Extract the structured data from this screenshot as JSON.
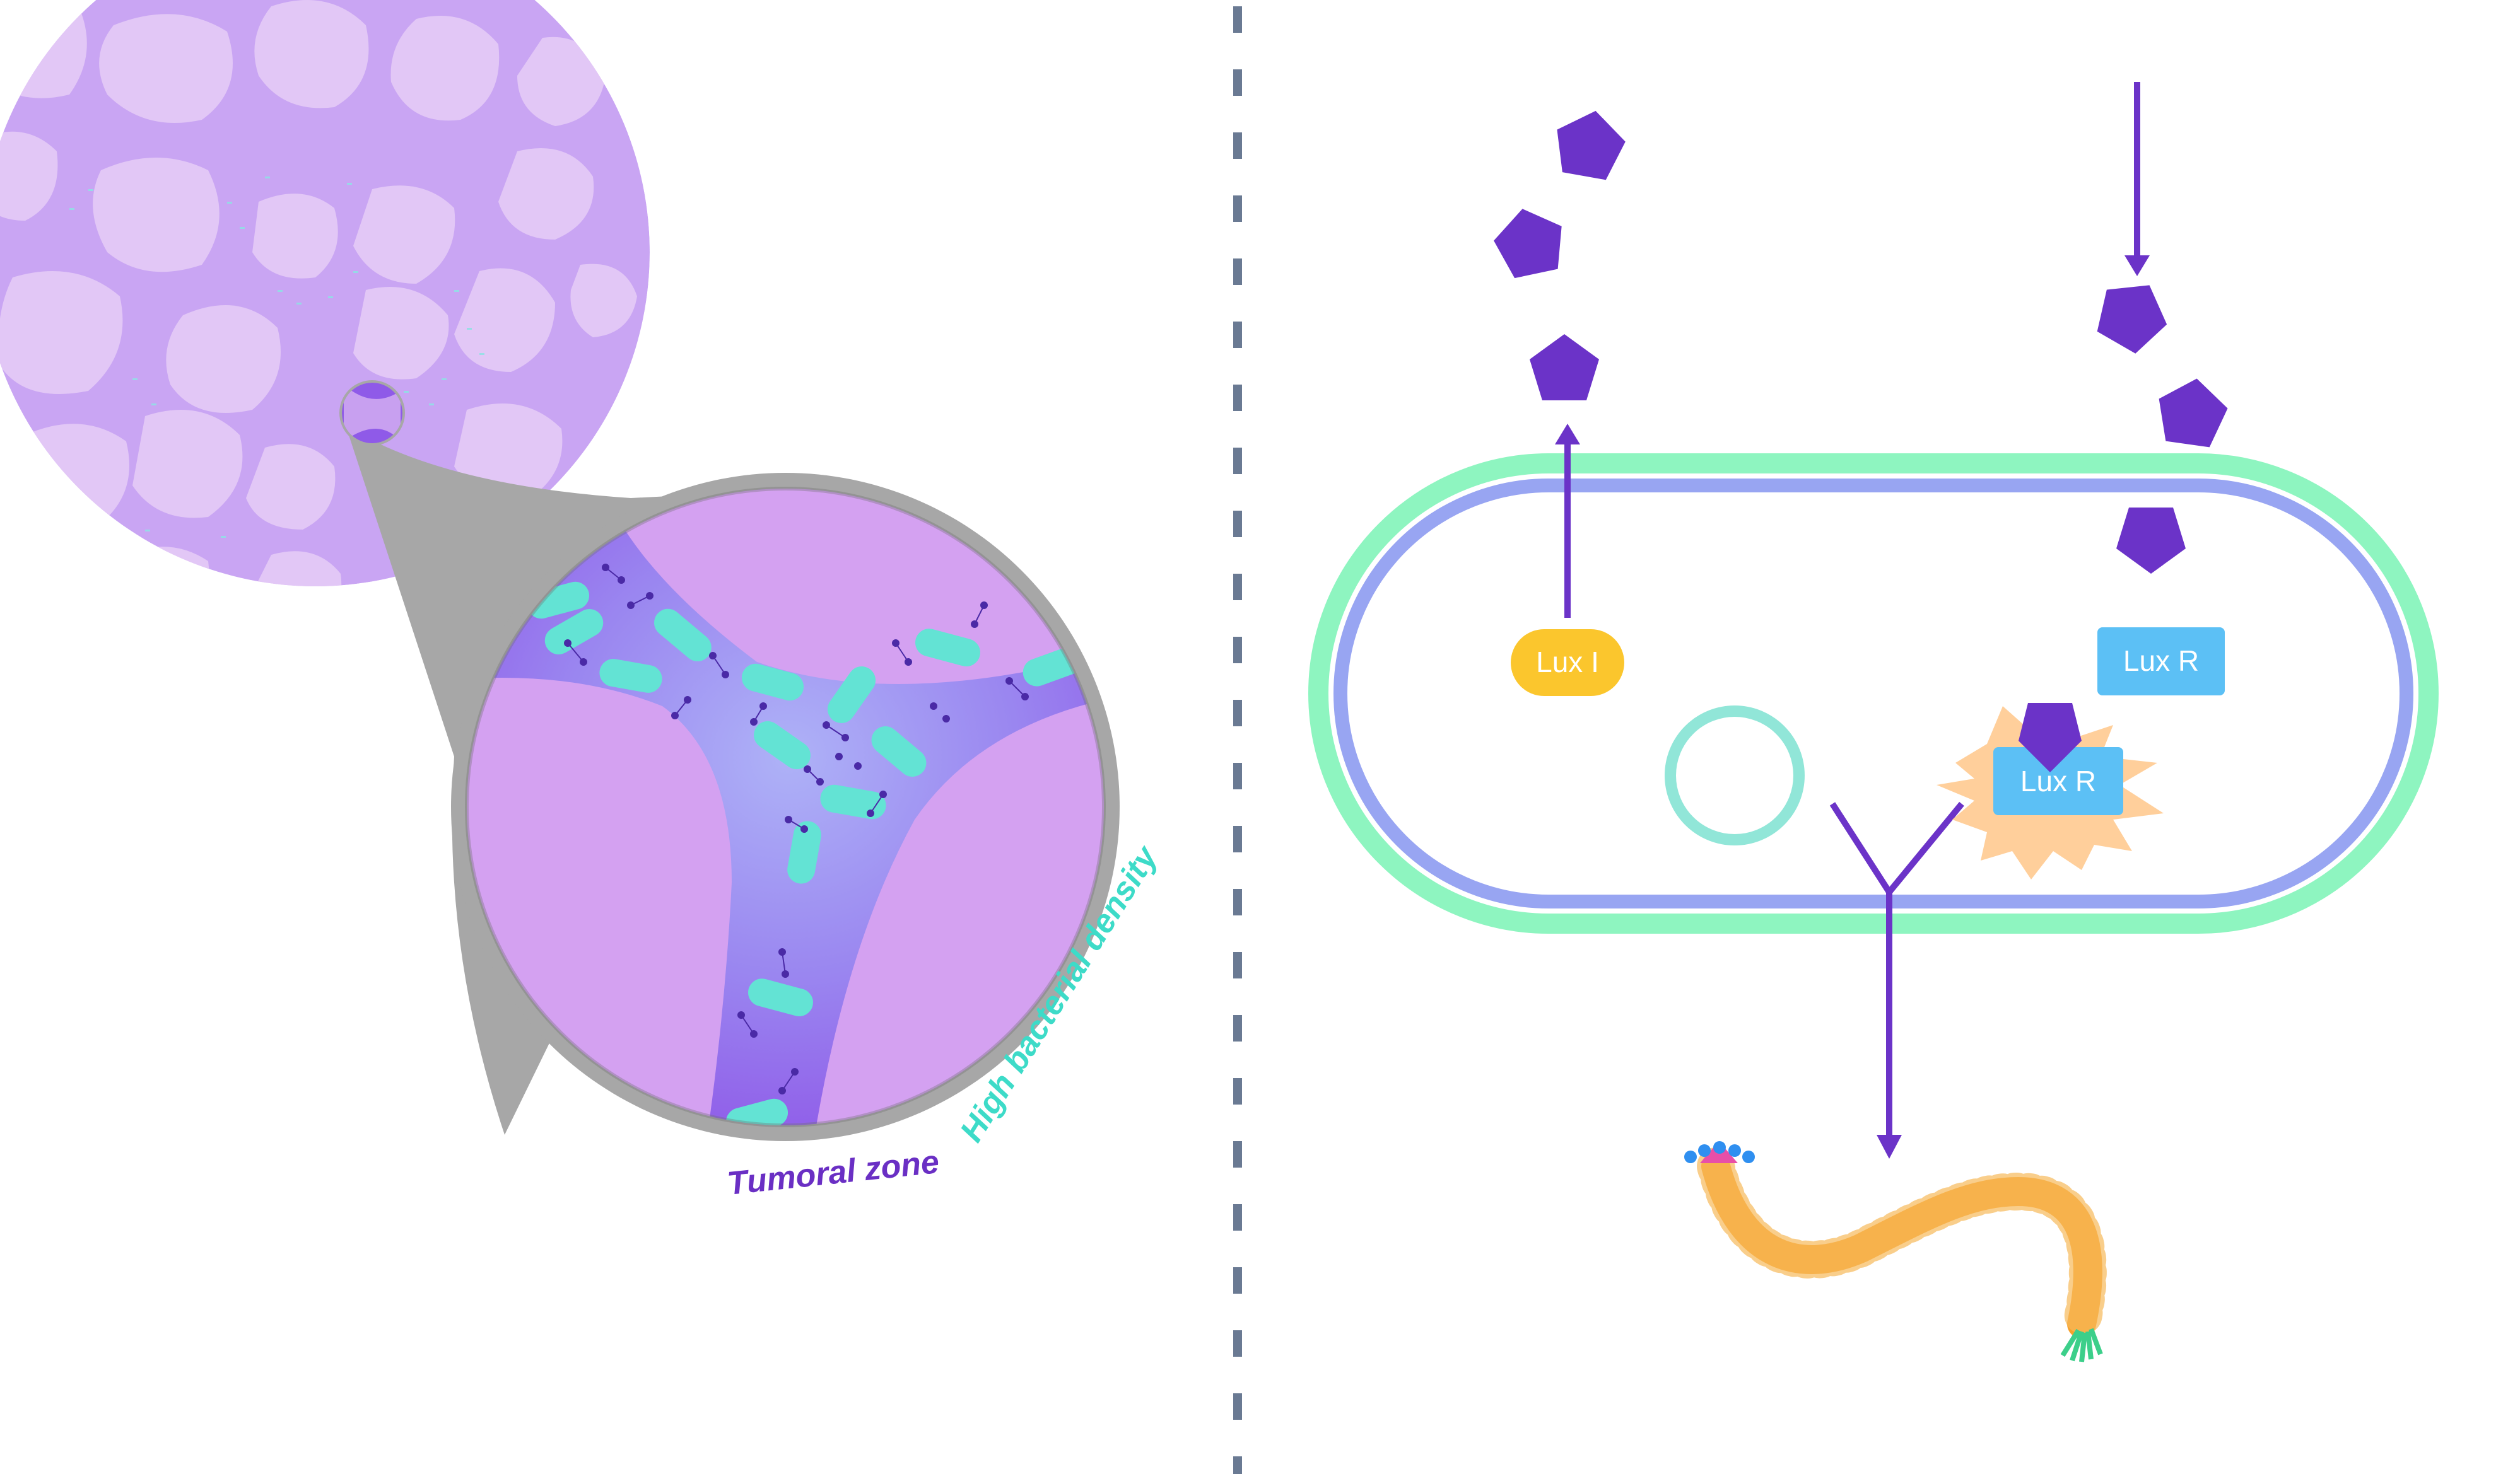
{
  "left_panel": {
    "caption_tumoral": "Tumoral zone",
    "caption_density": "High bacterial density"
  },
  "right_panel": {
    "labels": {
      "lux_i": "Lux I",
      "lux_r_free": "Lux R",
      "lux_r_bound": "Lux R"
    }
  },
  "colors": {
    "tissue_bg": "#c9a5f3",
    "cell": "#e2c7f6",
    "bacteria": "#63e3d4",
    "caption_purple": "#6a2fc4",
    "caption_teal": "#3ddbc8",
    "molecule": "#6b33c8",
    "outer_membrane": "#8ef5c0",
    "inner_membrane": "#98a5f2",
    "lux_i": "#fbc62d",
    "lux_r": "#5cc0f5",
    "plasmid": "#91e6d8",
    "activation_burst": "#ffcf9b",
    "protein_chain": "#f7a12c",
    "divider": "#6a7a93"
  }
}
